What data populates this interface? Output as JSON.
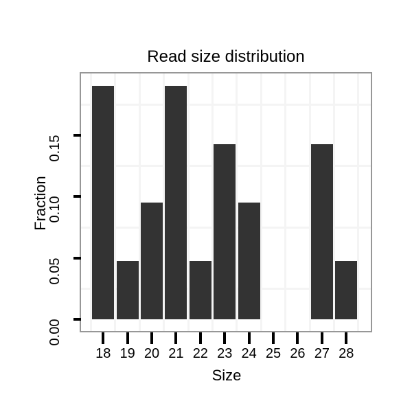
{
  "chart_data": {
    "type": "bar",
    "title": "Read size distribution",
    "xlabel": "Size",
    "ylabel": "Fraction",
    "categories": [
      "18",
      "19",
      "20",
      "21",
      "22",
      "23",
      "24",
      "25",
      "26",
      "27",
      "28"
    ],
    "values": [
      0.1905,
      0.0476,
      0.0952,
      0.1905,
      0.0476,
      0.1429,
      0.0952,
      0,
      0,
      0.1429,
      0.0476
    ],
    "x_ticks": [
      18,
      19,
      20,
      21,
      22,
      23,
      24,
      25,
      26,
      27,
      28
    ],
    "y_ticks": [
      {
        "label": "0.00",
        "value": 0.0
      },
      {
        "label": "0.05",
        "value": 0.05
      },
      {
        "label": "0.10",
        "value": 0.1
      },
      {
        "label": "0.15",
        "value": 0.15
      }
    ],
    "x_minor_gridlines": [
      17.5,
      18.5,
      19.5,
      20.5,
      21.5,
      22.5,
      23.5,
      24.5,
      25.5,
      26.5,
      27.5,
      28.5
    ],
    "y_minor_gridlines": [
      0.025,
      0.075,
      0.125,
      0.175
    ],
    "xlim": [
      17.09,
      29.01
    ],
    "ylim": [
      -0.0095,
      0.2005
    ],
    "grid": "minor-only",
    "legend": "none",
    "colors": {
      "bar_fill": "#333333",
      "panel_border": "#979797",
      "gridline": "#f4f4f4",
      "tick": "#000000",
      "text": "#000000",
      "background": "#ffffff"
    }
  }
}
